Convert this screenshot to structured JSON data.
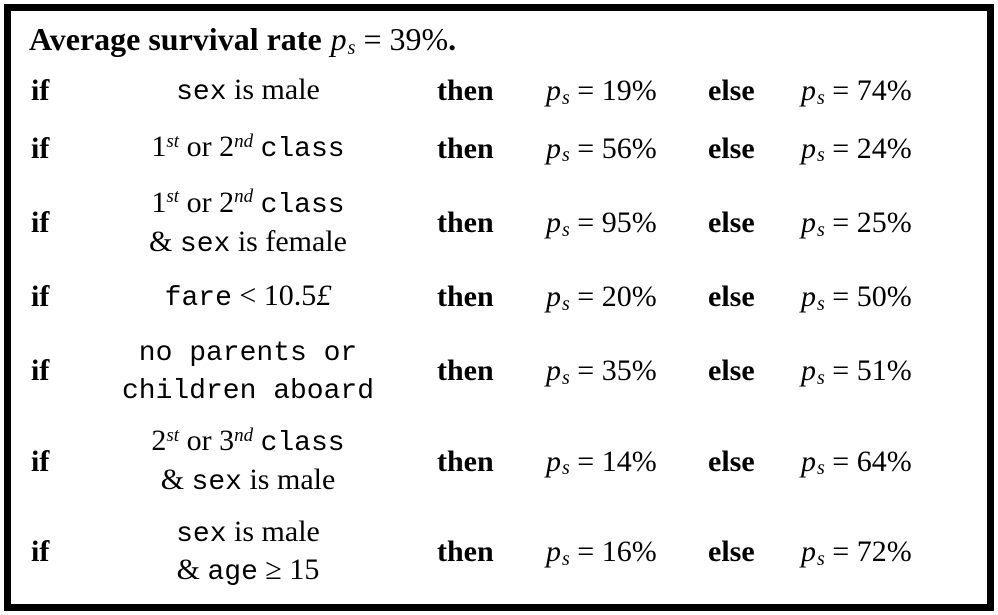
{
  "title": {
    "text": "Average survival rate",
    "ps_value": "39",
    "suffix": "."
  },
  "labels": {
    "if": "if",
    "then": "then",
    "else": "else",
    "ps_var": "p",
    "ps_sub": "s",
    "equals": "=",
    "percent": "%"
  },
  "rules": [
    {
      "condition": [
        [
          {
            "t": "sex",
            "f": "tt"
          },
          {
            "t": " is male",
            "f": "rm"
          }
        ]
      ],
      "then_value": "19",
      "else_value": "74"
    },
    {
      "condition": [
        [
          {
            "t": "1",
            "f": "rm"
          },
          {
            "t": "st",
            "f": "sup"
          },
          {
            "t": " or ",
            "f": "rm"
          },
          {
            "t": "2",
            "f": "rm"
          },
          {
            "t": "nd",
            "f": "sup"
          },
          {
            "t": " ",
            "f": "rm"
          },
          {
            "t": "class",
            "f": "tt"
          }
        ]
      ],
      "then_value": "56",
      "else_value": "24"
    },
    {
      "condition": [
        [
          {
            "t": "1",
            "f": "rm"
          },
          {
            "t": "st",
            "f": "sup"
          },
          {
            "t": " or ",
            "f": "rm"
          },
          {
            "t": "2",
            "f": "rm"
          },
          {
            "t": "nd",
            "f": "sup"
          },
          {
            "t": " ",
            "f": "rm"
          },
          {
            "t": "class",
            "f": "tt"
          }
        ],
        [
          {
            "t": "& ",
            "f": "rm"
          },
          {
            "t": "sex",
            "f": "tt"
          },
          {
            "t": " is female",
            "f": "rm"
          }
        ]
      ],
      "then_value": "95",
      "else_value": "25"
    },
    {
      "condition": [
        [
          {
            "t": "fare",
            "f": "tt"
          },
          {
            "t": " < 10.5",
            "f": "rm"
          },
          {
            "t": "£",
            "f": "it"
          }
        ]
      ],
      "then_value": "20",
      "else_value": "50"
    },
    {
      "condition": [
        [
          {
            "t": "no parents or",
            "f": "tt"
          }
        ],
        [
          {
            "t": "children aboard",
            "f": "tt"
          }
        ]
      ],
      "then_value": "35",
      "else_value": "51"
    },
    {
      "condition": [
        [
          {
            "t": "2",
            "f": "rm"
          },
          {
            "t": "st",
            "f": "sup"
          },
          {
            "t": " or ",
            "f": "rm"
          },
          {
            "t": "3",
            "f": "rm"
          },
          {
            "t": "nd",
            "f": "sup"
          },
          {
            "t": " ",
            "f": "rm"
          },
          {
            "t": "class",
            "f": "tt"
          }
        ],
        [
          {
            "t": "& ",
            "f": "rm"
          },
          {
            "t": "sex",
            "f": "tt"
          },
          {
            "t": " is male",
            "f": "rm"
          }
        ]
      ],
      "then_value": "14",
      "else_value": "64"
    },
    {
      "condition": [
        [
          {
            "t": "sex",
            "f": "tt"
          },
          {
            "t": " is male",
            "f": "rm"
          }
        ],
        [
          {
            "t": "& ",
            "f": "rm"
          },
          {
            "t": "age",
            "f": "tt"
          },
          {
            "t": " ≥ 15",
            "f": "rm"
          }
        ]
      ],
      "then_value": "16",
      "else_value": "72"
    }
  ]
}
